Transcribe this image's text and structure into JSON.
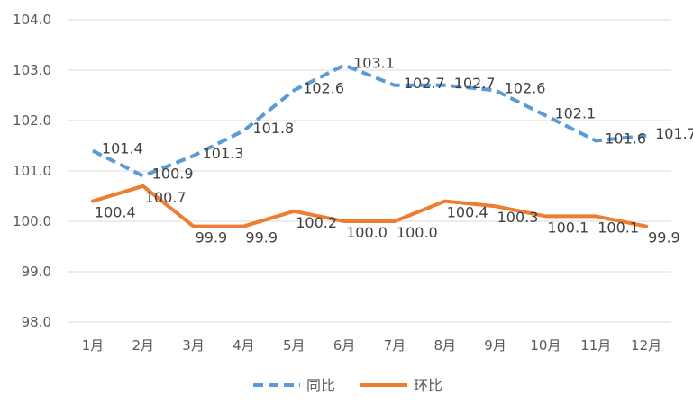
{
  "chart_data": {
    "type": "line",
    "title": "",
    "xlabel": "",
    "ylabel": "",
    "categories": [
      "1月",
      "2月",
      "3月",
      "4月",
      "5月",
      "6月",
      "7月",
      "8月",
      "9月",
      "10月",
      "11月",
      "12月"
    ],
    "ylim": [
      98.0,
      104.0
    ],
    "yticks": [
      "98.0",
      "99.0",
      "100.0",
      "101.0",
      "102.0",
      "103.0",
      "104.0"
    ],
    "grid": true,
    "legend_position": "bottom",
    "series": [
      {
        "name": "同比",
        "style": "dashed",
        "color": "#5b9bd5",
        "values": [
          101.4,
          100.9,
          101.3,
          101.8,
          102.6,
          103.1,
          102.7,
          102.7,
          102.6,
          102.1,
          101.6,
          101.7
        ],
        "labels": [
          "101.4",
          "100.9",
          "101.3",
          "101.8",
          "102.6",
          "103.1",
          "102.7",
          "102.7",
          "102.6",
          "102.1",
          "101.6",
          "101.7"
        ]
      },
      {
        "name": "环比",
        "style": "solid",
        "color": "#ed7d31",
        "values": [
          100.4,
          100.7,
          99.9,
          99.9,
          100.2,
          100.0,
          100.0,
          100.4,
          100.3,
          100.1,
          100.1,
          99.9
        ],
        "labels": [
          "100.4",
          "100.7",
          "99.9",
          "99.9",
          "100.2",
          "100.0",
          "100.0",
          "100.4",
          "100.3",
          "100.1",
          "100.1",
          "99.9"
        ]
      }
    ]
  }
}
